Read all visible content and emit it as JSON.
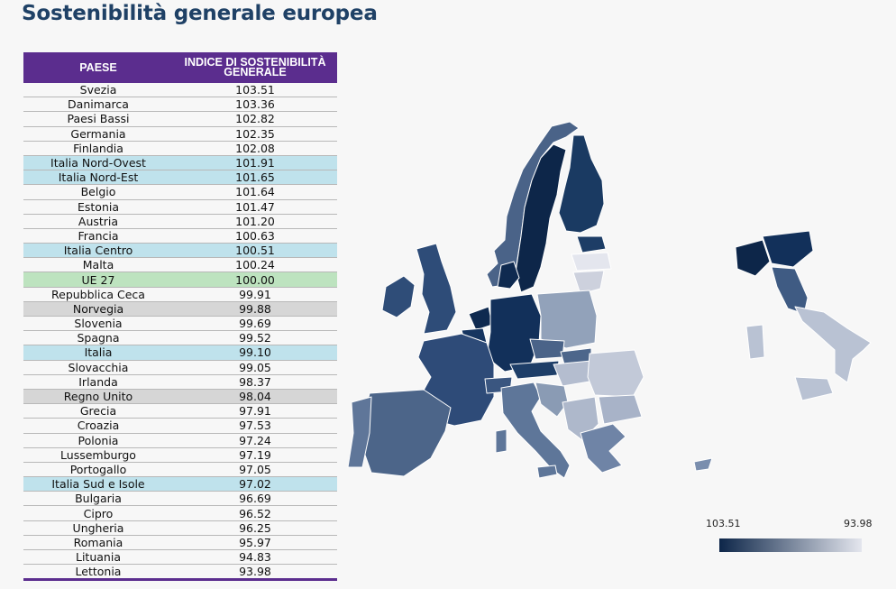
{
  "title": "Sostenibilità generale europea",
  "table": {
    "headers": [
      "PAESE",
      "INDICE DI SOSTENIBILITÀ GENERALE"
    ],
    "rows": [
      {
        "country": "Svezia",
        "value": "103.51",
        "type": "eu"
      },
      {
        "country": "Danimarca",
        "value": "103.36",
        "type": "eu"
      },
      {
        "country": "Paesi Bassi",
        "value": "102.82",
        "type": "eu"
      },
      {
        "country": "Germania",
        "value": "102.35",
        "type": "eu"
      },
      {
        "country": "Finlandia",
        "value": "102.08",
        "type": "eu"
      },
      {
        "country": "Italia Nord-Ovest",
        "value": "101.91",
        "type": "italia"
      },
      {
        "country": "Italia Nord-Est",
        "value": "101.65",
        "type": "italia"
      },
      {
        "country": "Belgio",
        "value": "101.64",
        "type": "eu"
      },
      {
        "country": "Estonia",
        "value": "101.47",
        "type": "eu"
      },
      {
        "country": "Austria",
        "value": "101.20",
        "type": "eu"
      },
      {
        "country": "Francia",
        "value": "100.63",
        "type": "eu"
      },
      {
        "country": "Italia Centro",
        "value": "100.51",
        "type": "italia"
      },
      {
        "country": "Malta",
        "value": "100.24",
        "type": "eu"
      },
      {
        "country": "UE 27",
        "value": "100.00",
        "type": "ue"
      },
      {
        "country": "Repubblica Ceca",
        "value": "99.91",
        "type": "eu"
      },
      {
        "country": "Norvegia",
        "value": "99.88",
        "type": "nonue"
      },
      {
        "country": "Slovenia",
        "value": "99.69",
        "type": "eu"
      },
      {
        "country": "Spagna",
        "value": "99.52",
        "type": "eu"
      },
      {
        "country": "Italia",
        "value": "99.10",
        "type": "italia"
      },
      {
        "country": "Slovacchia",
        "value": "99.05",
        "type": "eu"
      },
      {
        "country": "Irlanda",
        "value": "98.37",
        "type": "eu"
      },
      {
        "country": "Regno Unito",
        "value": "98.04",
        "type": "nonue"
      },
      {
        "country": "Grecia",
        "value": "97.91",
        "type": "eu"
      },
      {
        "country": "Croazia",
        "value": "97.53",
        "type": "eu"
      },
      {
        "country": "Polonia",
        "value": "97.24",
        "type": "eu"
      },
      {
        "country": "Lussemburgo",
        "value": "97.19",
        "type": "eu"
      },
      {
        "country": "Portogallo",
        "value": "97.05",
        "type": "eu"
      },
      {
        "country": "Italia Sud e Isole",
        "value": "97.02",
        "type": "italia"
      },
      {
        "country": "Bulgaria",
        "value": "96.69",
        "type": "eu"
      },
      {
        "country": "Cipro",
        "value": "96.52",
        "type": "eu"
      },
      {
        "country": "Ungheria",
        "value": "96.25",
        "type": "eu"
      },
      {
        "country": "Romania",
        "value": "95.97",
        "type": "eu"
      },
      {
        "country": "Lituania",
        "value": "94.83",
        "type": "eu"
      },
      {
        "country": "Lettonia",
        "value": "93.98",
        "type": "eu"
      }
    ]
  },
  "legend": {
    "max_label": "103.51",
    "min_label": "93.98",
    "color_high": "#0d2649",
    "color_low": "#e4e6ee"
  },
  "colors": {
    "header": "#5b2d8e",
    "italia_row": "#bfe2ec",
    "ue_row": "#bde3bf",
    "nonue_row": "#d6d6d6",
    "title": "#1f4166"
  }
}
